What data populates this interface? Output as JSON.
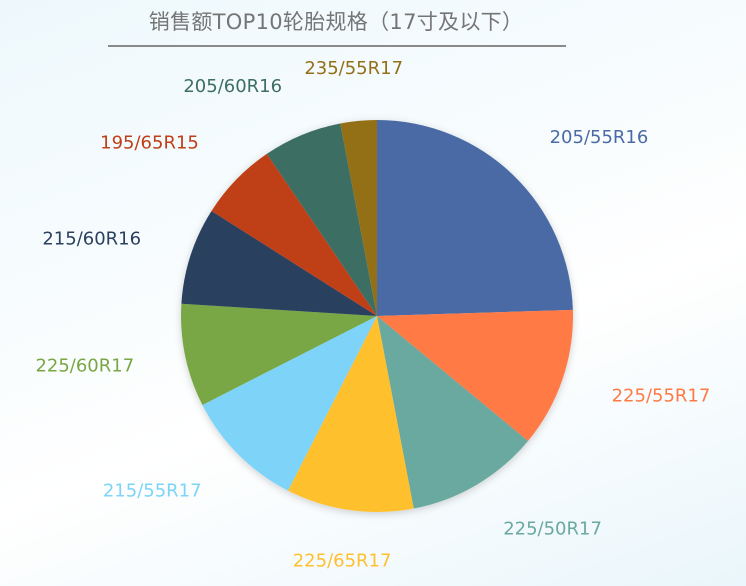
{
  "chart_data": {
    "type": "pie",
    "title": "销售额TOP10轮胎规格（17寸及以下）",
    "start_angle_deg": 0,
    "direction": "clockwise",
    "legend": "none",
    "slices": [
      {
        "label": "205/55R16",
        "value": 24.5,
        "color": "#4A6BA5"
      },
      {
        "label": "225/55R17",
        "value": 11.5,
        "color": "#FF7A45"
      },
      {
        "label": "225/50R17",
        "value": 11.0,
        "color": "#6AA9A0"
      },
      {
        "label": "225/65R17",
        "value": 10.5,
        "color": "#FFC02E"
      },
      {
        "label": "215/55R17",
        "value": 10.0,
        "color": "#7DD4F8"
      },
      {
        "label": "225/60R17",
        "value": 8.5,
        "color": "#7AA744"
      },
      {
        "label": "215/60R16",
        "value": 8.0,
        "color": "#2B3F5F"
      },
      {
        "label": "195/65R15",
        "value": 6.5,
        "color": "#BF3F16"
      },
      {
        "label": "205/60R16",
        "value": 6.5,
        "color": "#3E6E63"
      },
      {
        "label": "235/55R17",
        "value": 3.0,
        "color": "#936F17"
      }
    ]
  }
}
